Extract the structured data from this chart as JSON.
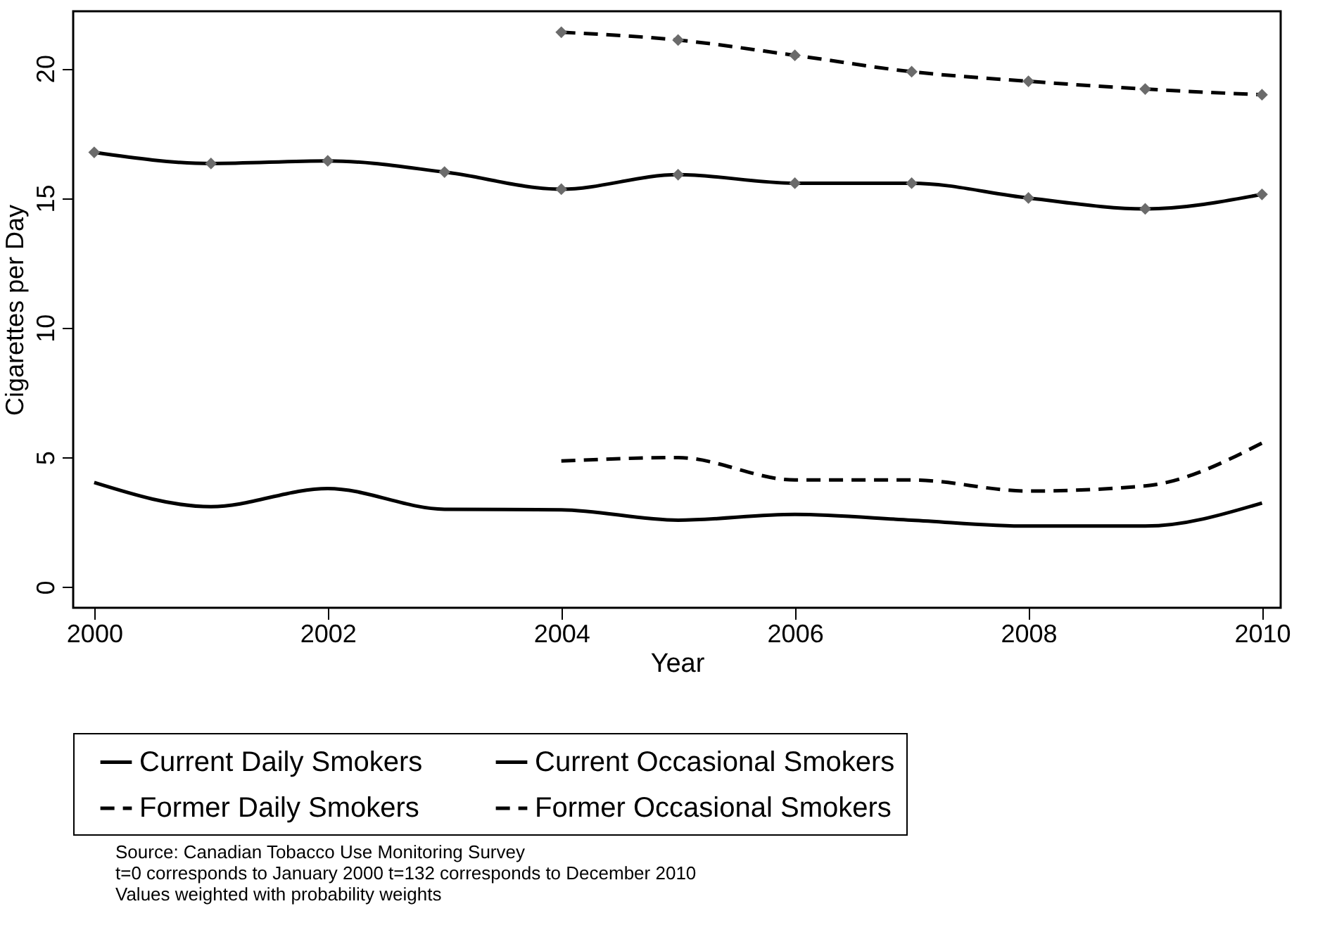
{
  "chart_data": {
    "type": "line",
    "xlabel": "Year",
    "ylabel": "Cigarettes per Day",
    "x": [
      2000,
      2001,
      2002,
      2003,
      2004,
      2005,
      2006,
      2007,
      2008,
      2009,
      2010
    ],
    "series": [
      {
        "name": "Current Daily Smokers",
        "color": "#000000",
        "marker": "diamond",
        "line_style": "solid",
        "values": [
          16.76,
          16.33,
          16.43,
          16.0,
          15.34,
          15.9,
          15.57,
          15.57,
          15.0,
          14.58,
          15.14
        ]
      },
      {
        "name": "Current Occasional Smokers",
        "color": "#000000",
        "marker": "none",
        "line_style": "solid",
        "values": [
          4.03,
          3.1,
          3.8,
          3.0,
          2.98,
          2.58,
          2.8,
          2.58,
          2.35,
          2.35,
          3.24
        ]
      },
      {
        "name": "Former Daily Smokers",
        "color": "#000000",
        "marker": "diamond",
        "line_style": "dashed",
        "values": [
          null,
          null,
          null,
          null,
          21.39,
          21.09,
          20.5,
          19.87,
          19.5,
          19.2,
          18.98
        ]
      },
      {
        "name": "Former Occasional Smokers",
        "color": "#000000",
        "marker": "none",
        "line_style": "dashed",
        "values": [
          null,
          null,
          null,
          null,
          4.86,
          4.99,
          4.13,
          4.13,
          3.7,
          3.9,
          5.55
        ]
      }
    ],
    "xlim": [
      1999.82,
      2010.16
    ],
    "xticks": [
      2000,
      2002,
      2004,
      2006,
      2008,
      2010
    ],
    "ylim": [
      -0.8,
      22.2
    ],
    "yticks": [
      0,
      5,
      10,
      15,
      20
    ],
    "legend": "bottom",
    "grid": false,
    "annotations": [
      "Source: Canadian Tobacco Use Monitoring Survey",
      "t=0 corresponds to January 2000 t=132 corresponds to December 2010",
      "Values weighted with probability weights"
    ]
  }
}
